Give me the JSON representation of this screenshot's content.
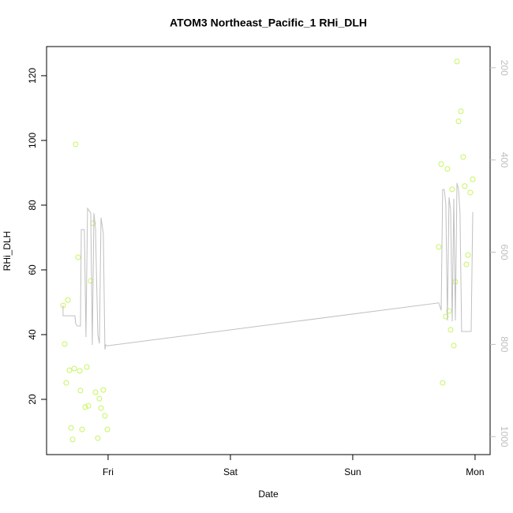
{
  "chart_data": {
    "type": "scatter",
    "title": "ATOM3 Northeast_Pacific_1 RHi_DLH",
    "x_label": "Date",
    "y_label": "RHi_DLH",
    "xlim": [
      -0.503,
      3.123
    ],
    "xticks": [
      {
        "value": 0,
        "label": "Fri"
      },
      {
        "value": 1,
        "label": "Sat"
      },
      {
        "value": 2,
        "label": "Sun"
      },
      {
        "value": 3,
        "label": "Mon"
      }
    ],
    "ylim": [
      2.93,
      129.0
    ],
    "yticks": [
      20,
      40,
      60,
      80,
      100,
      120
    ],
    "y2lim": [
      1039,
      154
    ],
    "y2ticks": [
      200,
      400,
      600,
      800,
      1000
    ],
    "y2_color": "#bebebe",
    "series": [
      {
        "type": "scatter",
        "color": "#c6f55e",
        "x": [
          -0.368,
          -0.355,
          -0.342,
          -0.329,
          -0.316,
          -0.303,
          -0.29,
          -0.277,
          -0.265,
          -0.245,
          -0.232,
          -0.226,
          -0.213,
          -0.187,
          -0.174,
          -0.161,
          -0.142,
          -0.123,
          -0.103,
          -0.084,
          -0.071,
          -0.058,
          -0.039,
          -0.026,
          -0.006,
          2.703,
          2.723,
          2.735,
          2.761,
          2.774,
          2.787,
          2.8,
          2.813,
          2.826,
          2.839,
          2.852,
          2.865,
          2.884,
          2.903,
          2.916,
          2.929,
          2.942,
          2.961,
          2.981
        ],
        "values": [
          49.0,
          37.1,
          25.1,
          50.7,
          29.0,
          11.2,
          7.6,
          29.5,
          98.8,
          63.9,
          28.8,
          22.7,
          10.7,
          17.6,
          30.0,
          18.0,
          56.6,
          74.4,
          22.2,
          8.0,
          20.2,
          17.3,
          22.9,
          14.9,
          10.7,
          67.1,
          92.7,
          25.1,
          45.6,
          91.2,
          47.3,
          41.5,
          84.9,
          36.6,
          56.3,
          124.4,
          105.9,
          109.0,
          94.9,
          85.9,
          61.7,
          64.6,
          83.9,
          88.0
        ]
      },
      {
        "type": "line",
        "axis": "y2",
        "color": "#c0c0c0",
        "x": [
          -0.368,
          -0.368,
          -0.271,
          -0.265,
          -0.252,
          -0.226,
          -0.219,
          -0.194,
          -0.181,
          -0.168,
          -0.142,
          -0.129,
          -0.116,
          -0.103,
          -0.084,
          -0.071,
          -0.058,
          -0.039,
          -0.026,
          -0.019,
          -0.006,
          2.703,
          2.723,
          2.735,
          2.748,
          2.761,
          2.774,
          2.787,
          2.8,
          2.813,
          2.826,
          2.839,
          2.852,
          2.865,
          2.877,
          2.89,
          2.903,
          2.968,
          2.981
        ],
        "values": [
          715,
          738,
          738,
          755,
          760,
          760,
          551,
          551,
          784,
          505,
          515,
          801,
          515,
          549,
          779,
          798,
          525,
          560,
          811,
          801,
          803,
          710,
          726,
          464,
          464,
          495,
          748,
          481,
          508,
          750,
          484,
          748,
          450,
          464,
          515,
          772,
          772,
          772,
          513
        ]
      }
    ]
  }
}
